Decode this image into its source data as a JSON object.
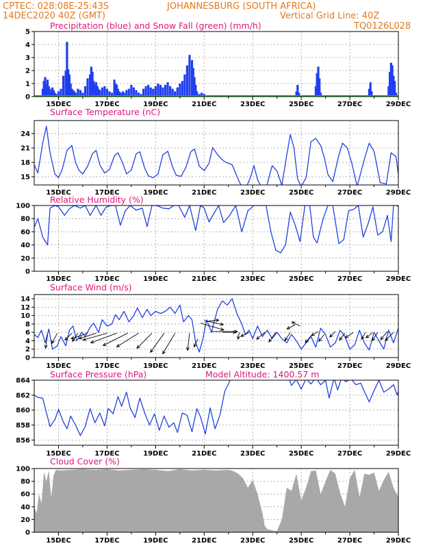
{
  "header": {
    "line1_left": "CPTEC:   028:08E-25:43S",
    "line1_right": "JOHANNESBURG (SOUTH AFRICA)",
    "line2_left": "14DEC2020 40Z (GMT)",
    "line2_mid": "Vertical Grid Line: 40Z",
    "line2_right": "TQ0126L028"
  },
  "colors": {
    "header": "#e07a1f",
    "title": "#e0157a",
    "precip": "#1f3ff0",
    "snow": "#22bb22",
    "line": "#2040e0",
    "cloud": "#a8a8a8",
    "grid": "#9a9a9a"
  },
  "x_dates": [
    "15DEC",
    "17DEC",
    "19DEC",
    "21DEC",
    "23DEC",
    "25DEC",
    "27DEC",
    "29DEC"
  ],
  "chart_data": [
    {
      "type": "bar",
      "title": "Precipitation (blue) and Snow Fall (green) (mm/h)",
      "ylim": [
        0,
        5
      ],
      "yticks": [
        "0",
        "1",
        "2",
        "3",
        "4",
        "5"
      ],
      "x": [
        14.35,
        14.4,
        14.45,
        14.5,
        14.55,
        14.6,
        14.65,
        14.7,
        14.75,
        14.8,
        14.85,
        14.9,
        15.0,
        15.1,
        15.2,
        15.3,
        15.35,
        15.4,
        15.45,
        15.5,
        15.55,
        15.6,
        15.65,
        15.7,
        15.8,
        15.9,
        16.0,
        16.1,
        16.2,
        16.3,
        16.35,
        16.4,
        16.45,
        16.5,
        16.55,
        16.6,
        16.65,
        16.7,
        16.8,
        16.9,
        17.0,
        17.1,
        17.2,
        17.3,
        17.35,
        17.4,
        17.45,
        17.5,
        17.55,
        17.6,
        17.65,
        17.7,
        17.8,
        17.9,
        18.0,
        18.1,
        18.2,
        18.3,
        18.4,
        18.5,
        18.6,
        18.7,
        18.8,
        18.9,
        19.0,
        19.1,
        19.2,
        19.3,
        19.4,
        19.5,
        19.6,
        19.7,
        19.8,
        19.9,
        20.0,
        20.1,
        20.2,
        20.3,
        20.4,
        20.5,
        20.55,
        20.6,
        20.65,
        20.7,
        20.8,
        20.9,
        21.0,
        24.8,
        24.85,
        24.9,
        25.6,
        25.65,
        25.7,
        25.75,
        25.8,
        27.8,
        27.85,
        27.9,
        28.6,
        28.65,
        28.7,
        28.75,
        28.8,
        28.85,
        28.9
      ],
      "values": [
        0.6,
        1.2,
        1.5,
        1.0,
        1.3,
        0.8,
        0.6,
        0.4,
        0.7,
        0.5,
        0.3,
        0.2,
        0.4,
        0.6,
        1.6,
        2.0,
        4.2,
        2.1,
        1.7,
        1.0,
        0.6,
        0.5,
        0.4,
        0.3,
        0.6,
        0.5,
        0.3,
        0.8,
        1.4,
        1.7,
        2.3,
        1.9,
        1.2,
        0.9,
        1.1,
        0.8,
        0.6,
        0.5,
        0.7,
        0.8,
        0.6,
        0.4,
        0.3,
        1.3,
        1.0,
        0.9,
        0.6,
        0.4,
        0.3,
        0.2,
        0.4,
        0.3,
        0.5,
        0.6,
        0.9,
        0.7,
        0.5,
        0.3,
        0.2,
        0.6,
        0.8,
        0.9,
        0.7,
        0.6,
        0.8,
        1.0,
        0.9,
        0.7,
        0.9,
        1.1,
        0.8,
        0.6,
        0.4,
        0.7,
        1.0,
        1.2,
        1.7,
        2.4,
        3.2,
        2.8,
        2.2,
        1.5,
        0.9,
        0.4,
        0.2,
        0.3,
        0.2,
        0.4,
        0.9,
        0.3,
        0.8,
        1.8,
        2.3,
        1.4,
        0.3,
        0.6,
        1.1,
        0.4,
        0.8,
        1.9,
        2.6,
        2.4,
        1.6,
        1.2,
        0.3
      ]
    },
    {
      "type": "line",
      "title": "Surface Temperature (nC)",
      "ylim": [
        13.3,
        26.7
      ],
      "yticks": [
        "15",
        "18",
        "21",
        "24"
      ],
      "x": [
        14.0,
        14.15,
        14.35,
        14.5,
        14.65,
        14.85,
        15.0,
        15.15,
        15.35,
        15.55,
        15.7,
        15.85,
        16.0,
        16.2,
        16.4,
        16.55,
        16.7,
        16.9,
        17.1,
        17.3,
        17.45,
        17.65,
        17.8,
        18.0,
        18.2,
        18.35,
        18.55,
        18.7,
        18.9,
        19.1,
        19.3,
        19.5,
        19.7,
        19.85,
        20.05,
        20.25,
        20.45,
        20.6,
        20.8,
        21.0,
        21.2,
        21.35,
        21.55,
        21.75,
        21.9,
        22.15,
        22.4,
        22.65,
        22.9,
        23.05,
        23.2,
        23.5,
        23.65,
        23.8,
        24.0,
        24.2,
        24.4,
        24.55,
        24.7,
        24.85,
        25.0,
        25.2,
        25.4,
        25.6,
        25.8,
        25.95,
        26.1,
        26.3,
        26.55,
        26.7,
        26.9,
        27.1,
        27.3,
        27.6,
        27.8,
        28.0,
        28.25,
        28.5,
        28.7,
        28.9,
        29.0
      ],
      "values": [
        17.5,
        15.8,
        22.0,
        25.5,
        20.0,
        15.6,
        14.8,
        16.5,
        20.5,
        21.5,
        18.0,
        16.3,
        15.6,
        17.2,
        19.8,
        20.5,
        17.5,
        15.8,
        16.5,
        19.3,
        20.0,
        17.8,
        15.6,
        16.4,
        19.8,
        20.2,
        16.8,
        15.2,
        14.8,
        15.6,
        19.6,
        20.3,
        17.0,
        15.3,
        15.1,
        17.0,
        20.2,
        20.8,
        17.2,
        16.3,
        17.8,
        21.1,
        19.6,
        18.5,
        18.0,
        17.5,
        14.5,
        11.8,
        14.8,
        17.3,
        14.4,
        11.5,
        14.5,
        17.3,
        16.2,
        13.2,
        19.5,
        23.8,
        21.0,
        14.5,
        13.0,
        14.8,
        22.3,
        23.0,
        21.5,
        19.0,
        15.5,
        14.0,
        19.5,
        22.0,
        21.0,
        17.5,
        13.0,
        18.6,
        22.0,
        20.3,
        13.8,
        13.5,
        20.0,
        19.2,
        15.5
      ]
    },
    {
      "type": "line",
      "title": "Relative Humidity (%)",
      "ylim": [
        0,
        100
      ],
      "yticks": [
        "0",
        "20",
        "40",
        "60",
        "80",
        "100"
      ],
      "x": [
        14.0,
        14.15,
        14.35,
        14.55,
        14.65,
        14.85,
        15.0,
        15.25,
        15.45,
        15.65,
        15.9,
        16.1,
        16.3,
        16.55,
        16.75,
        16.95,
        17.15,
        17.35,
        17.55,
        17.75,
        17.95,
        18.2,
        18.45,
        18.65,
        18.85,
        19.05,
        19.3,
        19.55,
        19.75,
        19.95,
        20.2,
        20.4,
        20.65,
        20.85,
        21.0,
        21.2,
        21.4,
        21.6,
        21.8,
        22.05,
        22.3,
        22.55,
        22.8,
        23.05,
        23.3,
        23.55,
        23.75,
        23.95,
        24.15,
        24.35,
        24.55,
        24.75,
        24.95,
        25.15,
        25.35,
        25.5,
        25.65,
        25.9,
        26.1,
        26.3,
        26.55,
        26.75,
        26.95,
        27.15,
        27.35,
        27.55,
        27.75,
        27.95,
        28.15,
        28.35,
        28.55,
        28.7,
        28.8,
        28.95,
        29.0
      ],
      "values": [
        67.0,
        80.0,
        52.0,
        40.0,
        96.0,
        100.0,
        98.0,
        85.0,
        95.0,
        100.0,
        96.0,
        100.0,
        85.0,
        100.0,
        85.0,
        97.0,
        100.0,
        100.0,
        70.0,
        92.0,
        100.0,
        93.0,
        96.0,
        68.0,
        100.0,
        100.0,
        96.0,
        95.0,
        100.0,
        100.0,
        82.0,
        100.0,
        62.0,
        100.0,
        96.0,
        75.0,
        88.0,
        100.0,
        74.0,
        85.0,
        100.0,
        60.0,
        92.0,
        100.0,
        100.0,
        100.0,
        60.0,
        32.0,
        28.0,
        40.0,
        90.0,
        70.0,
        45.0,
        100.0,
        100.0,
        52.0,
        43.0,
        80.0,
        100.0,
        100.0,
        42.0,
        48.0,
        92.0,
        94.0,
        100.0,
        52.0,
        72.0,
        98.0,
        55.0,
        60.0,
        85.0,
        45.0,
        100.0,
        100.0,
        98.0
      ]
    },
    {
      "type": "line",
      "title": "Surface Wind (m/s)",
      "ylim": [
        0,
        15
      ],
      "yticks": [
        "0",
        "2",
        "4",
        "6",
        "8",
        "10",
        "12",
        "14"
      ],
      "x": [
        14.0,
        14.15,
        14.3,
        14.45,
        14.6,
        14.75,
        14.95,
        15.1,
        15.3,
        15.45,
        15.6,
        15.75,
        15.95,
        16.1,
        16.3,
        16.45,
        16.65,
        16.8,
        17.0,
        17.2,
        17.35,
        17.5,
        17.7,
        17.9,
        18.1,
        18.25,
        18.45,
        18.65,
        18.8,
        19.0,
        19.2,
        19.4,
        19.6,
        19.8,
        20.0,
        20.15,
        20.35,
        20.5,
        20.65,
        20.8,
        20.95,
        21.1,
        21.3,
        21.55,
        21.75,
        21.95,
        22.15,
        22.35,
        22.55,
        22.7,
        22.85,
        23.0,
        23.2,
        23.4,
        23.6,
        23.8,
        24.0,
        24.2,
        24.4,
        24.6,
        24.8,
        25.0,
        25.2,
        25.4,
        25.6,
        25.8,
        26.0,
        26.2,
        26.4,
        26.6,
        26.8,
        27.0,
        27.2,
        27.4,
        27.6,
        27.8,
        28.0,
        28.2,
        28.4,
        28.6,
        28.8,
        29.0
      ],
      "values": [
        5.5,
        4.8,
        6.5,
        3.5,
        6.8,
        2.0,
        2.8,
        5.0,
        2.8,
        6.5,
        7.5,
        4.0,
        6.0,
        5.0,
        7.2,
        8.2,
        6.0,
        9.0,
        7.5,
        8.0,
        10.2,
        9.0,
        11.0,
        8.5,
        10.0,
        11.8,
        9.5,
        11.5,
        10.0,
        11.0,
        10.5,
        11.0,
        12.0,
        10.5,
        12.5,
        8.5,
        10.0,
        9.0,
        3.5,
        1.3,
        4.5,
        9.0,
        6.0,
        11.5,
        13.5,
        12.5,
        14.0,
        10.5,
        8.0,
        5.5,
        6.5,
        4.5,
        7.5,
        5.0,
        6.5,
        4.5,
        6.0,
        4.5,
        3.5,
        5.5,
        4.0,
        2.0,
        3.5,
        5.0,
        2.5,
        7.0,
        5.5,
        2.5,
        3.5,
        6.5,
        5.0,
        2.0,
        3.0,
        6.5,
        3.5,
        1.8,
        6.0,
        4.0,
        2.0,
        6.5,
        3.5,
        7.0
      ],
      "vectors": [
        [
          14.55,
          5.5,
          -3,
          -20
        ],
        [
          14.95,
          5.8,
          -8,
          -15
        ],
        [
          15.55,
          5.8,
          -10,
          -10
        ],
        [
          15.8,
          5.8,
          -8,
          -12
        ],
        [
          16.2,
          5.8,
          -24,
          -8
        ],
        [
          16.55,
          5.8,
          -25,
          -8
        ],
        [
          17.0,
          5.8,
          -35,
          -10
        ],
        [
          17.4,
          5.8,
          -38,
          -14
        ],
        [
          17.85,
          5.8,
          -36,
          -18
        ],
        [
          18.3,
          5.8,
          -32,
          -20
        ],
        [
          18.85,
          5.8,
          -22,
          -22
        ],
        [
          19.35,
          5.8,
          -20,
          -28
        ],
        [
          19.8,
          5.8,
          -18,
          -30
        ],
        [
          20.4,
          5.8,
          -3,
          -25
        ],
        [
          20.75,
          4.5,
          -6,
          -12
        ],
        [
          20.85,
          8.2,
          34,
          -10
        ],
        [
          21.0,
          8.8,
          28,
          -6
        ],
        [
          21.1,
          8.6,
          18,
          2
        ],
        [
          21.3,
          6.2,
          38,
          0
        ],
        [
          21.75,
          6.0,
          20,
          0
        ],
        [
          22.45,
          6.0,
          -2,
          -10
        ],
        [
          22.85,
          6.0,
          -12,
          -6
        ],
        [
          23.5,
          6.0,
          -12,
          -10
        ],
        [
          23.95,
          6.0,
          -10,
          -14
        ],
        [
          24.55,
          6.0,
          -8,
          -12
        ],
        [
          24.75,
          7.8,
          -12,
          -6
        ],
        [
          24.95,
          7.5,
          -12,
          6
        ],
        [
          25.45,
          5.5,
          -10,
          -12
        ],
        [
          25.7,
          6.2,
          -10,
          -6
        ],
        [
          25.95,
          5.5,
          -8,
          -10
        ],
        [
          26.4,
          6.2,
          -8,
          -8
        ],
        [
          26.8,
          5.8,
          -8,
          -10
        ],
        [
          27.15,
          6.0,
          -12,
          -8
        ],
        [
          27.65,
          6.0,
          -6,
          -10
        ],
        [
          27.95,
          6.0,
          -10,
          -8
        ],
        [
          28.15,
          6.0,
          -8,
          -12
        ],
        [
          28.55,
          6.2,
          -10,
          -12
        ],
        [
          28.8,
          6.0,
          -12,
          -12
        ]
      ]
    },
    {
      "type": "line",
      "title": "Surface Pressure (hPa)",
      "subtitle": "Model Altitude: 1400.57 m",
      "ylim": [
        855.3,
        864.0
      ],
      "yticks": [
        "856",
        "858",
        "860",
        "862",
        "864"
      ],
      "x": [
        14.0,
        14.15,
        14.35,
        14.5,
        14.65,
        14.85,
        15.0,
        15.2,
        15.35,
        15.5,
        15.7,
        15.9,
        16.1,
        16.3,
        16.5,
        16.7,
        16.9,
        17.05,
        17.25,
        17.45,
        17.6,
        17.8,
        17.95,
        18.15,
        18.35,
        18.55,
        18.75,
        18.95,
        19.15,
        19.35,
        19.55,
        19.75,
        19.9,
        20.1,
        20.3,
        20.5,
        20.7,
        20.85,
        21.05,
        21.25,
        21.45,
        21.65,
        21.85,
        22.0,
        22.1,
        24.5,
        24.6,
        24.8,
        25.0,
        25.2,
        25.4,
        25.6,
        25.8,
        26.0,
        26.15,
        26.35,
        26.5,
        26.65,
        26.85,
        27.05,
        27.25,
        27.45,
        27.6,
        27.8,
        28.0,
        28.2,
        28.4,
        28.6,
        28.8,
        28.95,
        29.0
      ],
      "values": [
        862.0,
        861.7,
        861.6,
        859.7,
        857.8,
        858.7,
        860.1,
        858.4,
        857.5,
        859.2,
        858.0,
        856.6,
        857.8,
        860.2,
        858.3,
        859.6,
        857.9,
        860.2,
        859.5,
        861.8,
        860.5,
        862.4,
        860.3,
        859.0,
        861.6,
        859.6,
        858.0,
        859.5,
        857.3,
        859.2,
        857.7,
        858.3,
        857.0,
        859.6,
        859.3,
        857.1,
        860.2,
        859.1,
        856.8,
        860.3,
        857.5,
        859.3,
        862.5,
        863.5,
        864.2,
        864.2,
        863.3,
        864.1,
        862.8,
        864.2,
        863.5,
        864.3,
        863.4,
        864.0,
        861.6,
        864.3,
        862.7,
        864.2,
        863.8,
        864.2,
        863.4,
        863.6,
        862.5,
        861.1,
        862.6,
        864.0,
        862.4,
        862.8,
        863.4,
        862.0,
        862.5
      ]
    },
    {
      "type": "area",
      "title": "Cloud Cover (%)",
      "ylim": [
        0,
        100
      ],
      "yticks": [
        "0",
        "20",
        "40",
        "60",
        "80",
        "100"
      ],
      "x": [
        14.0,
        14.1,
        14.2,
        14.3,
        14.4,
        14.5,
        14.6,
        14.7,
        14.8,
        14.9,
        15.0,
        15.5,
        16.0,
        16.5,
        17.0,
        17.5,
        18.0,
        18.5,
        19.0,
        19.5,
        20.0,
        20.5,
        21.0,
        21.5,
        22.0,
        22.2,
        22.4,
        22.6,
        22.8,
        23.0,
        23.2,
        23.4,
        23.5,
        23.6,
        23.8,
        24.0,
        24.2,
        24.4,
        24.6,
        24.8,
        25.0,
        25.2,
        25.4,
        25.6,
        25.8,
        26.0,
        26.2,
        26.4,
        26.6,
        26.8,
        27.0,
        27.2,
        27.4,
        27.6,
        27.8,
        28.0,
        28.2,
        28.4,
        28.6,
        28.8,
        29.0
      ],
      "values": [
        40,
        30,
        60,
        45,
        95,
        80,
        97,
        55,
        90,
        98,
        97,
        98,
        99,
        98,
        99,
        97,
        98,
        99,
        98,
        96,
        99,
        97,
        98,
        97,
        98,
        96,
        92,
        85,
        70,
        82,
        60,
        30,
        10,
        5,
        3,
        2,
        20,
        70,
        65,
        92,
        50,
        70,
        96,
        97,
        60,
        80,
        98,
        92,
        62,
        40,
        85,
        98,
        55,
        92,
        90,
        94,
        65,
        82,
        95,
        70,
        55
      ]
    }
  ]
}
